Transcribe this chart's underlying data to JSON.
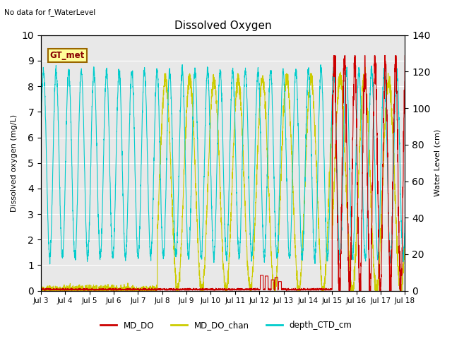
{
  "title": "Dissolved Oxygen",
  "ylabel_left": "Dissolved oxygen (mg/L)",
  "ylabel_right": "Water Level (cm)",
  "text_no_data": "No data for f_WaterLevel",
  "gt_met_label": "GT_met",
  "ylim_left": [
    0.0,
    10.0
  ],
  "ylim_right": [
    0,
    140
  ],
  "yticks_left": [
    0.0,
    1.0,
    2.0,
    3.0,
    4.0,
    5.0,
    6.0,
    7.0,
    8.0,
    9.0,
    10.0
  ],
  "yticks_right": [
    0,
    20,
    40,
    60,
    80,
    100,
    120,
    140
  ],
  "xtick_labels": [
    "Jul 3",
    "Jul 4",
    "Jul 5",
    "Jul 6",
    "Jul 7",
    "Jul 8",
    "Jul 9",
    "Jul 10",
    "Jul 11",
    "Jul 12",
    "Jul 13",
    "Jul 14",
    "Jul 15",
    "Jul 16",
    "Jul 17",
    "Jul 18"
  ],
  "color_MD_DO": "#cc0000",
  "color_MD_DO_chan": "#cccc00",
  "color_depth_CTD_cm": "#00cccc",
  "bg_color": "#e8e8e8",
  "legend_labels": [
    "MD_DO",
    "MD_DO_chan",
    "depth_CTD_cm"
  ],
  "legend_colors": [
    "#cc0000",
    "#cccc00",
    "#00cccc"
  ],
  "gt_met_bg": "#ffff99",
  "gt_met_border": "#996600"
}
